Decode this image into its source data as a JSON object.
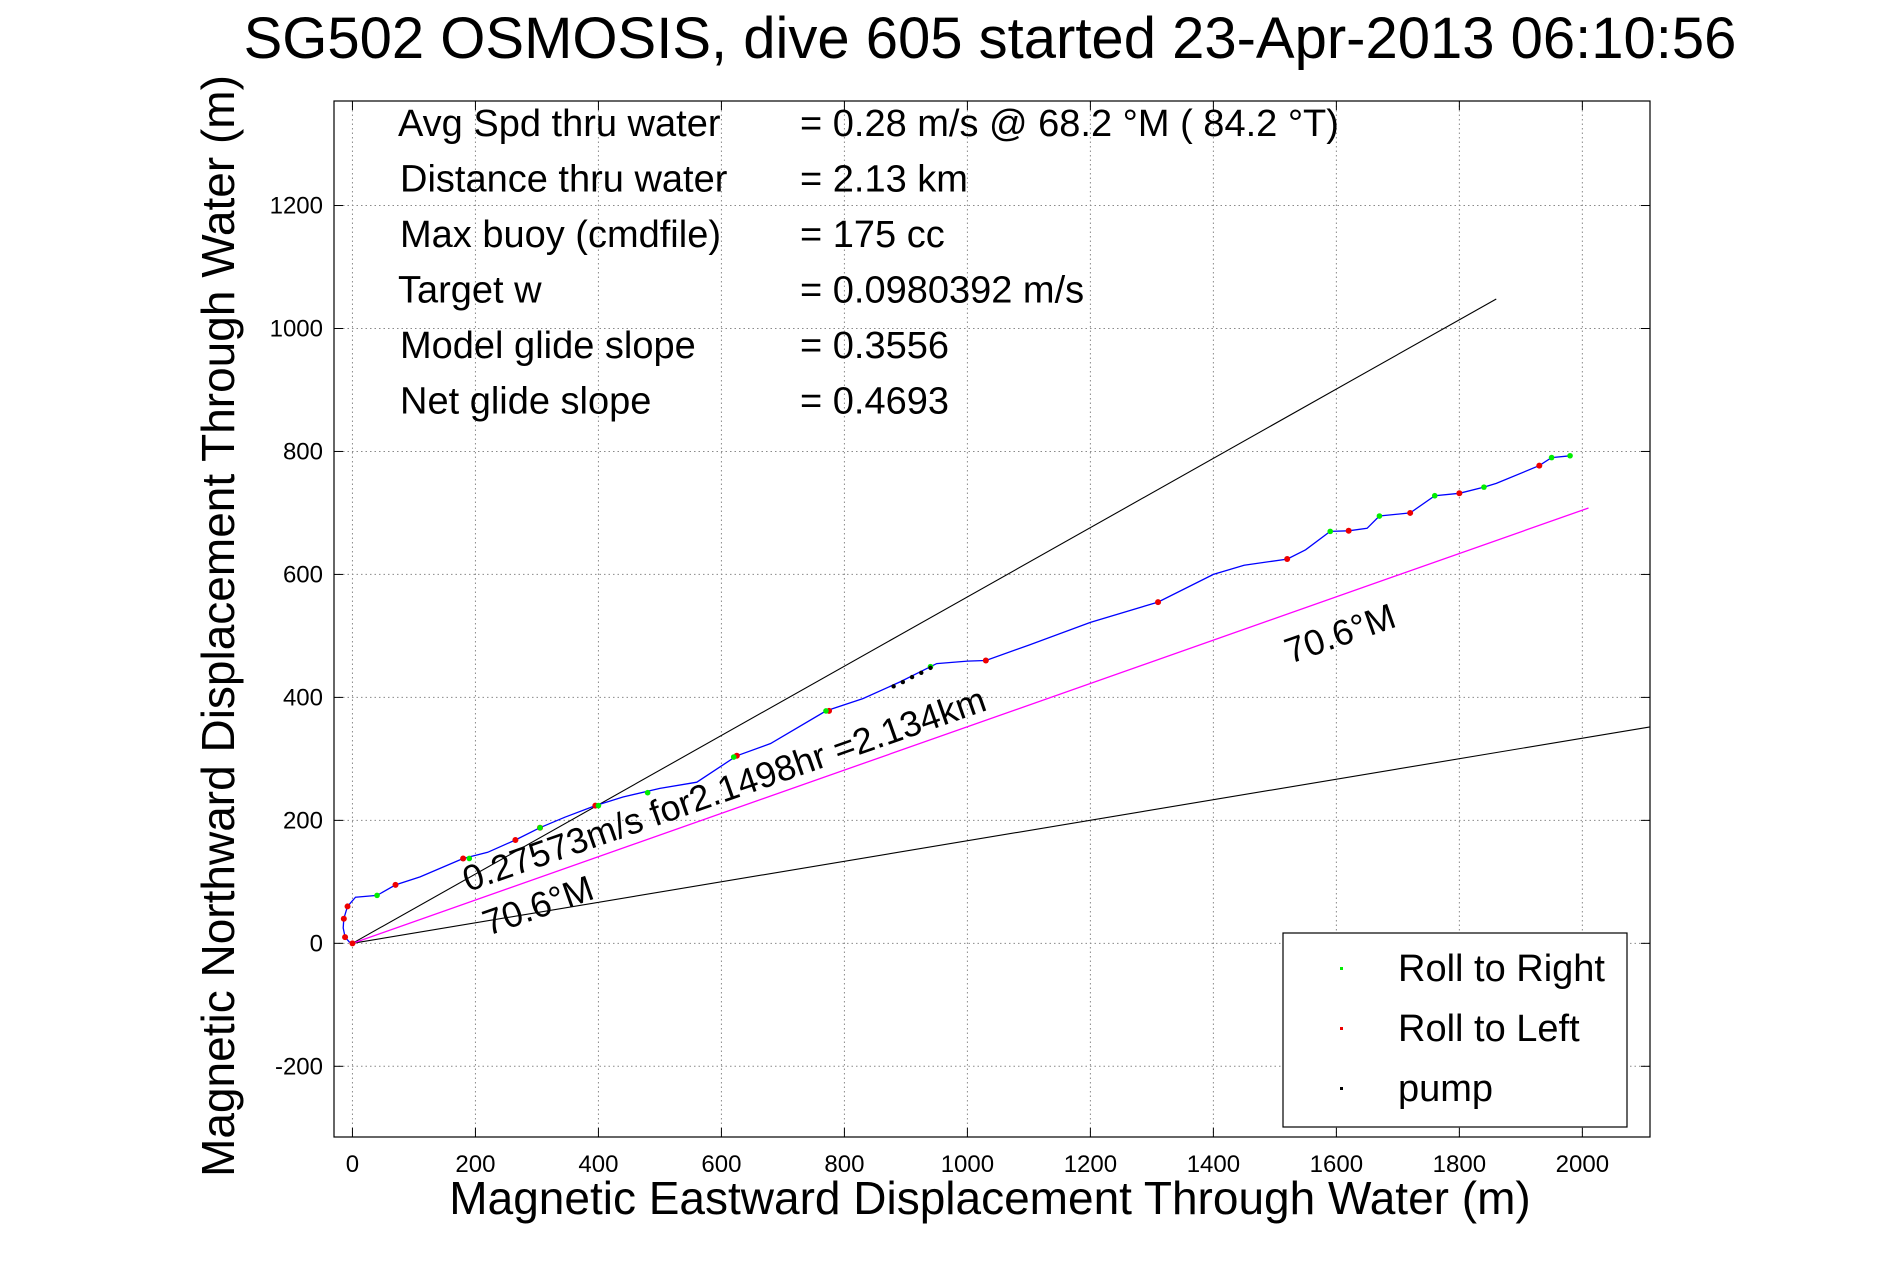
{
  "chart_data": {
    "type": "line",
    "title": "SG502 OSMOSIS, dive 605 started 23-Apr-2013 06:10:56",
    "xlabel": "Magnetic Eastward Displacement Through Water (m)",
    "ylabel": "Magnetic Northward Displacement Through Water (m)",
    "xlim": [
      -30,
      2110
    ],
    "ylim": [
      -315,
      1370
    ],
    "xticks": [
      0,
      200,
      400,
      600,
      800,
      1000,
      1200,
      1400,
      1600,
      1800,
      2000
    ],
    "yticks": [
      -200,
      0,
      200,
      400,
      600,
      800,
      1000,
      1200
    ],
    "grid": true,
    "info_lines": [
      {
        "label": "Avg Spd thru water",
        "value": "=  0.28 m/s @  68.2 °M ( 84.2 °T)"
      },
      {
        "label": "Distance thru water",
        "value": "=  2.13 km"
      },
      {
        "label": "Max buoy (cmdfile)",
        "value": "= 175 cc"
      },
      {
        "label": "Target w",
        "value": "= 0.0980392 m/s"
      },
      {
        "label": "Model glide slope",
        "value": "= 0.3556"
      },
      {
        "label": "Net glide slope",
        "value": "= 0.4693"
      }
    ],
    "annotations": {
      "speed_text": "0.27573m/s for2.1498hr =2.134km",
      "heading_text_upper": "70.6°M",
      "heading_text_lower": "70.6°M"
    },
    "legend": {
      "placement": "bottom-right",
      "entries": [
        {
          "label": "Roll to Right",
          "color": "#00ee00"
        },
        {
          "label": "Roll to Left",
          "color": "#ee0000"
        },
        {
          "label": "pump",
          "color": "#000000"
        }
      ]
    },
    "colors": {
      "track": "#0000ff",
      "heading_line": "#ff00ff",
      "glide_lines": "#000000",
      "roll_right": "#00ee00",
      "roll_left": "#ee0000",
      "pump": "#000000"
    },
    "track": {
      "x": [
        0,
        -5,
        -12,
        -15,
        -14,
        -8,
        5,
        40,
        70,
        110,
        180,
        220,
        265,
        305,
        345,
        395,
        440,
        500,
        560,
        625,
        680,
        770,
        830,
        890,
        950,
        1000,
        1030,
        1100,
        1200,
        1310,
        1400,
        1450,
        1520,
        1550,
        1590,
        1620,
        1650,
        1670,
        1720,
        1760,
        1800,
        1840,
        1860,
        1930,
        1950,
        1980
      ],
      "y": [
        0,
        2,
        10,
        25,
        40,
        60,
        75,
        78,
        95,
        108,
        138,
        148,
        168,
        188,
        205,
        224,
        238,
        252,
        262,
        305,
        325,
        378,
        398,
        425,
        455,
        459,
        460,
        485,
        522,
        555,
        600,
        615,
        625,
        640,
        670,
        671,
        675,
        695,
        700,
        728,
        732,
        742,
        748,
        777,
        790,
        793
      ]
    },
    "roll_right_points": {
      "x": [
        40,
        190,
        305,
        400,
        480,
        620,
        770,
        940,
        1590,
        1670,
        1760,
        1840,
        1950,
        1980
      ],
      "y": [
        78,
        138,
        188,
        224,
        245,
        303,
        378,
        450,
        670,
        695,
        728,
        742,
        790,
        793
      ]
    },
    "roll_left_points": {
      "x": [
        -12,
        -14,
        -8,
        0,
        70,
        180,
        265,
        305,
        395,
        625,
        775,
        1030,
        1310,
        1520,
        1620,
        1720,
        1800,
        1930
      ],
      "y": [
        10,
        40,
        60,
        0,
        95,
        138,
        168,
        188,
        224,
        305,
        378,
        460,
        555,
        625,
        671,
        700,
        732,
        777
      ]
    },
    "pump_points": {
      "x": [
        880,
        895,
        910,
        925,
        940
      ],
      "y": [
        418,
        425,
        433,
        440,
        448
      ]
    },
    "heading_line": {
      "x": [
        0,
        2010
      ],
      "y": [
        0,
        708
      ]
    },
    "glide_line_upper": {
      "x": [
        0,
        1860
      ],
      "y": [
        0,
        1048
      ]
    },
    "glide_line_lower": {
      "x": [
        0,
        2110
      ],
      "y": [
        0,
        352
      ]
    }
  }
}
